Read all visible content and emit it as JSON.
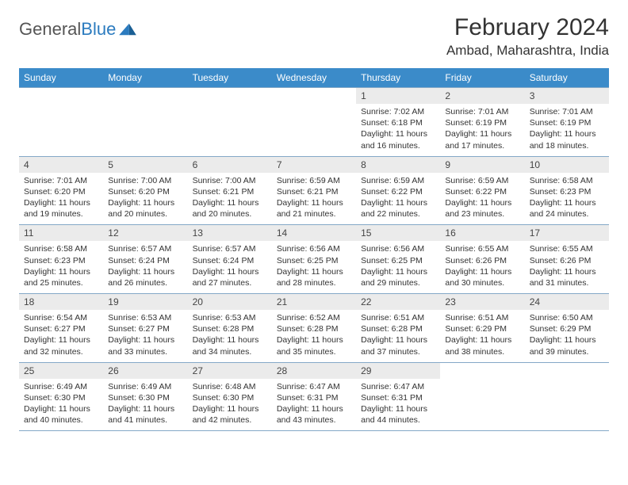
{
  "brand": {
    "part1": "General",
    "part2": "Blue"
  },
  "title": "February 2024",
  "location": "Ambad, Maharashtra, India",
  "colors": {
    "header_bg": "#3b8bc9",
    "header_text": "#ffffff",
    "daynum_bg": "#ebebeb",
    "border": "#84a8c7",
    "text": "#333333"
  },
  "day_headers": [
    "Sunday",
    "Monday",
    "Tuesday",
    "Wednesday",
    "Thursday",
    "Friday",
    "Saturday"
  ],
  "weeks": [
    [
      null,
      null,
      null,
      null,
      {
        "n": "1",
        "sr": "7:02 AM",
        "ss": "6:18 PM",
        "dh": "11",
        "dm": "16"
      },
      {
        "n": "2",
        "sr": "7:01 AM",
        "ss": "6:19 PM",
        "dh": "11",
        "dm": "17"
      },
      {
        "n": "3",
        "sr": "7:01 AM",
        "ss": "6:19 PM",
        "dh": "11",
        "dm": "18"
      }
    ],
    [
      {
        "n": "4",
        "sr": "7:01 AM",
        "ss": "6:20 PM",
        "dh": "11",
        "dm": "19"
      },
      {
        "n": "5",
        "sr": "7:00 AM",
        "ss": "6:20 PM",
        "dh": "11",
        "dm": "20"
      },
      {
        "n": "6",
        "sr": "7:00 AM",
        "ss": "6:21 PM",
        "dh": "11",
        "dm": "20"
      },
      {
        "n": "7",
        "sr": "6:59 AM",
        "ss": "6:21 PM",
        "dh": "11",
        "dm": "21"
      },
      {
        "n": "8",
        "sr": "6:59 AM",
        "ss": "6:22 PM",
        "dh": "11",
        "dm": "22"
      },
      {
        "n": "9",
        "sr": "6:59 AM",
        "ss": "6:22 PM",
        "dh": "11",
        "dm": "23"
      },
      {
        "n": "10",
        "sr": "6:58 AM",
        "ss": "6:23 PM",
        "dh": "11",
        "dm": "24"
      }
    ],
    [
      {
        "n": "11",
        "sr": "6:58 AM",
        "ss": "6:23 PM",
        "dh": "11",
        "dm": "25"
      },
      {
        "n": "12",
        "sr": "6:57 AM",
        "ss": "6:24 PM",
        "dh": "11",
        "dm": "26"
      },
      {
        "n": "13",
        "sr": "6:57 AM",
        "ss": "6:24 PM",
        "dh": "11",
        "dm": "27"
      },
      {
        "n": "14",
        "sr": "6:56 AM",
        "ss": "6:25 PM",
        "dh": "11",
        "dm": "28"
      },
      {
        "n": "15",
        "sr": "6:56 AM",
        "ss": "6:25 PM",
        "dh": "11",
        "dm": "29"
      },
      {
        "n": "16",
        "sr": "6:55 AM",
        "ss": "6:26 PM",
        "dh": "11",
        "dm": "30"
      },
      {
        "n": "17",
        "sr": "6:55 AM",
        "ss": "6:26 PM",
        "dh": "11",
        "dm": "31"
      }
    ],
    [
      {
        "n": "18",
        "sr": "6:54 AM",
        "ss": "6:27 PM",
        "dh": "11",
        "dm": "32"
      },
      {
        "n": "19",
        "sr": "6:53 AM",
        "ss": "6:27 PM",
        "dh": "11",
        "dm": "33"
      },
      {
        "n": "20",
        "sr": "6:53 AM",
        "ss": "6:28 PM",
        "dh": "11",
        "dm": "34"
      },
      {
        "n": "21",
        "sr": "6:52 AM",
        "ss": "6:28 PM",
        "dh": "11",
        "dm": "35"
      },
      {
        "n": "22",
        "sr": "6:51 AM",
        "ss": "6:28 PM",
        "dh": "11",
        "dm": "37"
      },
      {
        "n": "23",
        "sr": "6:51 AM",
        "ss": "6:29 PM",
        "dh": "11",
        "dm": "38"
      },
      {
        "n": "24",
        "sr": "6:50 AM",
        "ss": "6:29 PM",
        "dh": "11",
        "dm": "39"
      }
    ],
    [
      {
        "n": "25",
        "sr": "6:49 AM",
        "ss": "6:30 PM",
        "dh": "11",
        "dm": "40"
      },
      {
        "n": "26",
        "sr": "6:49 AM",
        "ss": "6:30 PM",
        "dh": "11",
        "dm": "41"
      },
      {
        "n": "27",
        "sr": "6:48 AM",
        "ss": "6:30 PM",
        "dh": "11",
        "dm": "42"
      },
      {
        "n": "28",
        "sr": "6:47 AM",
        "ss": "6:31 PM",
        "dh": "11",
        "dm": "43"
      },
      {
        "n": "29",
        "sr": "6:47 AM",
        "ss": "6:31 PM",
        "dh": "11",
        "dm": "44"
      },
      null,
      null
    ]
  ]
}
